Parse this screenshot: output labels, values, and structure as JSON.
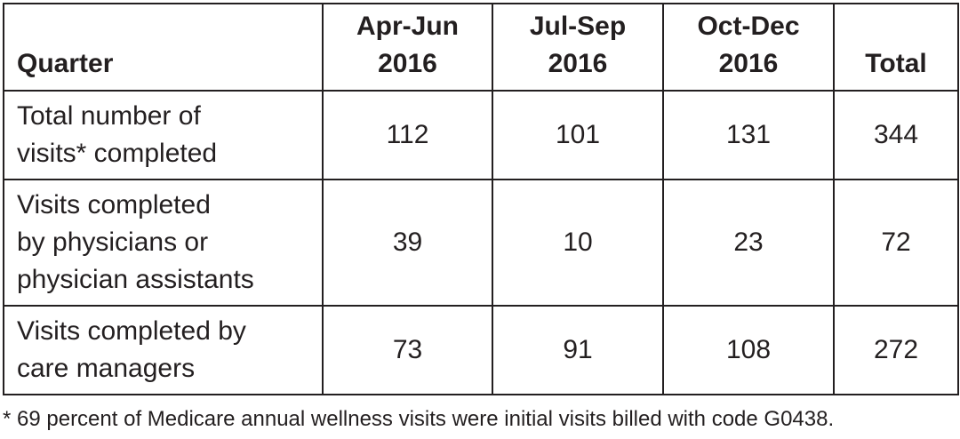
{
  "table": {
    "header": [
      "Quarter",
      "Apr-Jun\n2016",
      "Jul-Sep\n2016",
      "Oct-Dec\n2016",
      "Total"
    ],
    "rows": [
      [
        "Total number of\nvisits* completed",
        112,
        101,
        131,
        344
      ],
      [
        "Visits completed\nby physicians or\nphysician assistants",
        39,
        10,
        23,
        72
      ],
      [
        "Visits completed by\ncare managers",
        73,
        91,
        108,
        272
      ]
    ]
  },
  "footnote": "* 69 percent of Medicare annual wellness visits were initial visits billed with code G0438."
}
